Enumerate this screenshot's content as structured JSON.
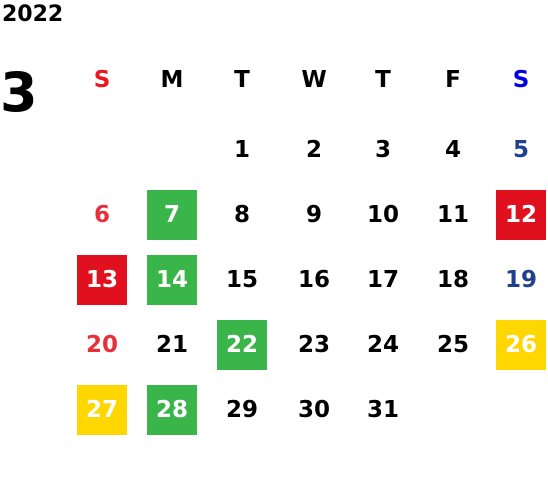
{
  "year": "2022",
  "month": "3",
  "weekdays": [
    "S",
    "M",
    "T",
    "W",
    "T",
    "F",
    "S"
  ],
  "weekday_colors": [
    "#e8191f",
    "#000000",
    "#000000",
    "#000000",
    "#000000",
    "#000000",
    "#0000e0"
  ],
  "day_colors": [
    "#e8303a",
    "#000000",
    "#000000",
    "#000000",
    "#000000",
    "#000000",
    "#1f3f8f"
  ],
  "highlight_text_color": "#ffffff",
  "weeks": [
    [
      null,
      null,
      1,
      2,
      3,
      4,
      5
    ],
    [
      6,
      7,
      8,
      9,
      10,
      11,
      12
    ],
    [
      13,
      14,
      15,
      16,
      17,
      18,
      19
    ],
    [
      20,
      21,
      22,
      23,
      24,
      25,
      26
    ],
    [
      27,
      28,
      29,
      30,
      31,
      null,
      null
    ]
  ],
  "backgrounds": [
    [
      null,
      null,
      null,
      null,
      null,
      null,
      null
    ],
    [
      null,
      "#3ab54a",
      null,
      null,
      null,
      null,
      "#e0101e"
    ],
    [
      "#e0101e",
      "#3ab54a",
      null,
      null,
      null,
      null,
      null
    ],
    [
      null,
      null,
      "#3ab54a",
      null,
      null,
      null,
      "#fed700"
    ],
    [
      "#fed700",
      "#3ab54a",
      null,
      null,
      null,
      null,
      null
    ]
  ]
}
